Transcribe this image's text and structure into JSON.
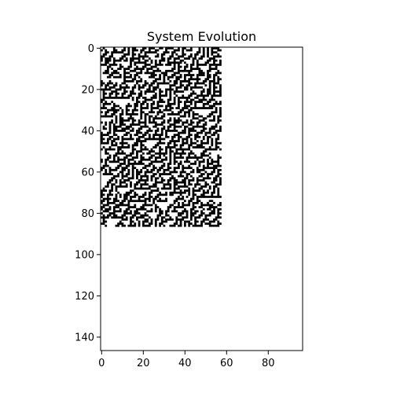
{
  "chart_data": {
    "type": "heatmap",
    "title": "System Evolution",
    "xlabel": "",
    "ylabel": "",
    "colormap": "binary",
    "x_ticks": [
      0,
      20,
      40,
      60,
      80
    ],
    "y_ticks": [
      0,
      20,
      40,
      60,
      80,
      100,
      120,
      140
    ],
    "xlim": [
      -0.5,
      96.5
    ],
    "ylim": [
      146.5,
      -0.5
    ],
    "y_inverted": true,
    "grid": false,
    "filled_region": {
      "columns": [
        0,
        57
      ],
      "rows": [
        0,
        86
      ]
    },
    "colors": {
      "on": "#000000",
      "off": "#ffffff",
      "axis": "#000000"
    }
  }
}
